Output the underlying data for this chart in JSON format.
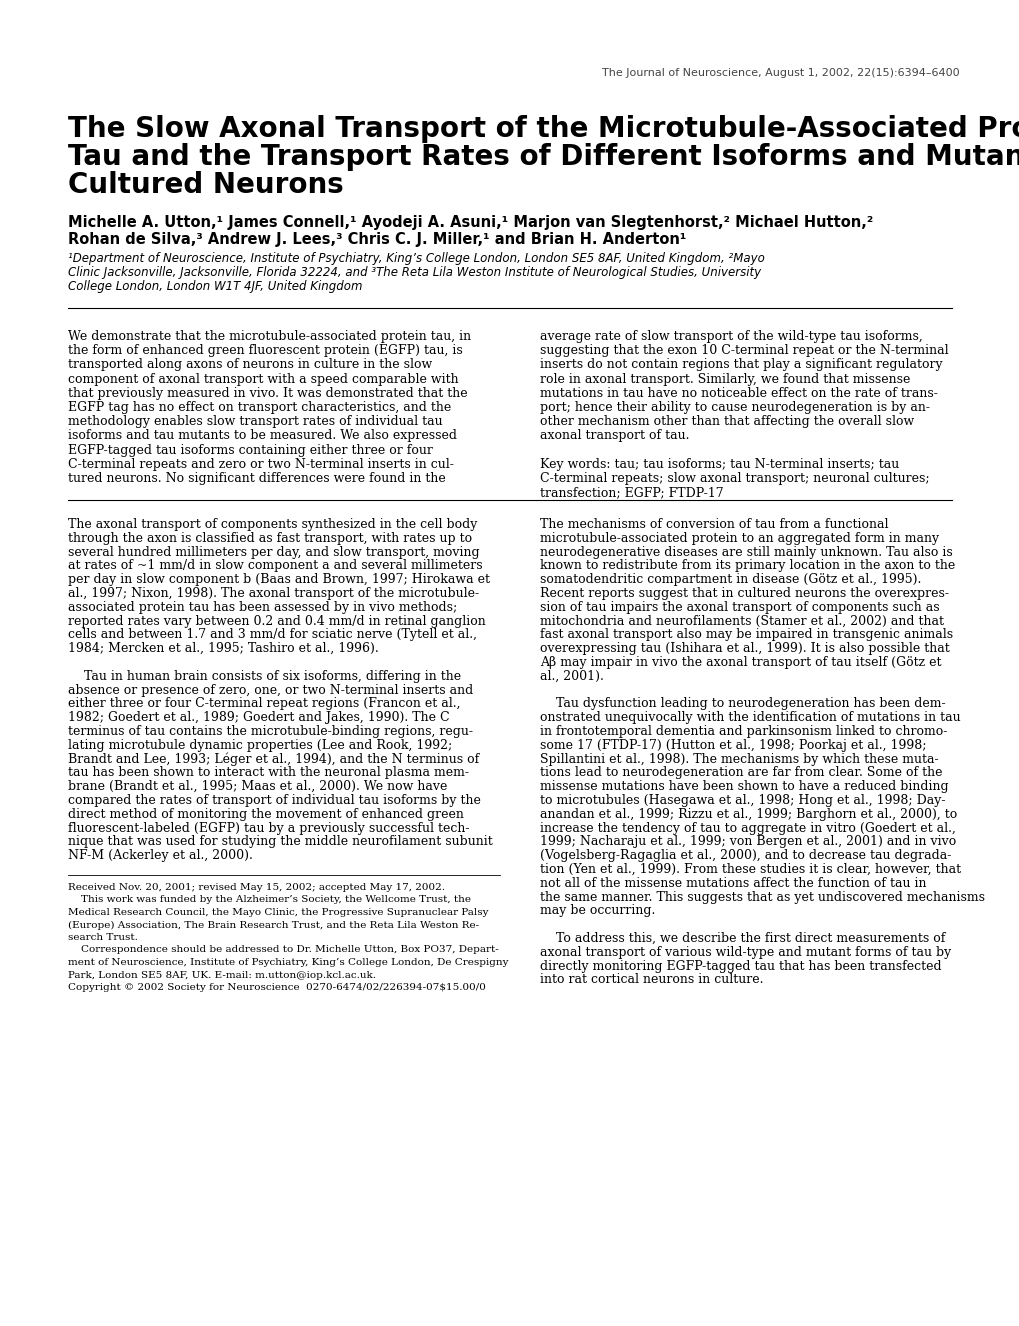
{
  "background_color": "#ffffff",
  "header_text": "The Journal of Neuroscience, August 1, 2002, 22(15):6394–6400",
  "title_line1": "The Slow Axonal Transport of the Microtubule-Associated Protein",
  "title_line2": "Tau and the Transport Rates of Different Isoforms and Mutants in",
  "title_line3": "Cultured Neurons",
  "authors_line1": "Michelle A. Utton,¹ James Connell,¹ Ayodeji A. Asuni,¹ Marjon van Slegtenhorst,² Michael Hutton,²",
  "authors_line2": "Rohan de Silva,³ Andrew J. Lees,³ Chris C. J. Miller,¹ and Brian H. Anderton¹",
  "affil1": "¹Department of Neuroscience, Institute of Psychiatry, King’s College London, London SE5 8AF, United Kingdom, ²Mayo",
  "affil2": "Clinic Jacksonville, Jacksonville, Florida 32224, and ³The Reta Lila Weston Institute of Neurological Studies, University",
  "affil3": "College London, London W1T 4JF, United Kingdom",
  "abstract_left_lines": [
    "We demonstrate that the microtubule-associated protein tau, in",
    "the form of enhanced green fluorescent protein (EGFP) tau, is",
    "transported along axons of neurons in culture in the slow",
    "component of axonal transport with a speed comparable with",
    "that previously measured in vivo. It was demonstrated that the",
    "EGFP tag has no effect on transport characteristics, and the",
    "methodology enables slow transport rates of individual tau",
    "isoforms and tau mutants to be measured. We also expressed",
    "EGFP-tagged tau isoforms containing either three or four",
    "C-terminal repeats and zero or two N-terminal inserts in cul-",
    "tured neurons. No significant differences were found in the"
  ],
  "abstract_right_lines": [
    "average rate of slow transport of the wild-type tau isoforms,",
    "suggesting that the exon 10 C-terminal repeat or the N-terminal",
    "inserts do not contain regions that play a significant regulatory",
    "role in axonal transport. Similarly, we found that missense",
    "mutations in tau have no noticeable effect on the rate of trans-",
    "port; hence their ability to cause neurodegeneration is by an-",
    "other mechanism other than that affecting the overall slow",
    "axonal transport of tau.",
    "",
    "Key words: tau; tau isoforms; tau N-terminal inserts; tau",
    "C-terminal repeats; slow axonal transport; neuronal cultures;",
    "transfection; EGFP; FTDP-17"
  ],
  "body_left_lines": [
    "The axonal transport of components synthesized in the cell body",
    "through the axon is classified as fast transport, with rates up to",
    "several hundred millimeters per day, and slow transport, moving",
    "at rates of ~1 mm/d in slow component a and several millimeters",
    "per day in slow component b (Baas and Brown, 1997; Hirokawa et",
    "al., 1997; Nixon, 1998). The axonal transport of the microtubule-",
    "associated protein tau has been assessed by in vivo methods;",
    "reported rates vary between 0.2 and 0.4 mm/d in retinal ganglion",
    "cells and between 1.7 and 3 mm/d for sciatic nerve (Tytell et al.,",
    "1984; Mercken et al., 1995; Tashiro et al., 1996).",
    "",
    "    Tau in human brain consists of six isoforms, differing in the",
    "absence or presence of zero, one, or two N-terminal inserts and",
    "either three or four C-terminal repeat regions (Francon et al.,",
    "1982; Goedert et al., 1989; Goedert and Jakes, 1990). The C",
    "terminus of tau contains the microtubule-binding regions, regu-",
    "lating microtubule dynamic properties (Lee and Rook, 1992;",
    "Brandt and Lee, 1993; Léger et al., 1994), and the N terminus of",
    "tau has been shown to interact with the neuronal plasma mem-",
    "brane (Brandt et al., 1995; Maas et al., 2000). We now have",
    "compared the rates of transport of individual tau isoforms by the",
    "direct method of monitoring the movement of enhanced green",
    "fluorescent-labeled (EGFP) tau by a previously successful tech-",
    "nique that was used for studying the middle neurofilament subunit",
    "NF-M (Ackerley et al., 2000)."
  ],
  "body_right_lines": [
    "The mechanisms of conversion of tau from a functional",
    "microtubule-associated protein to an aggregated form in many",
    "neurodegenerative diseases are still mainly unknown. Tau also is",
    "known to redistribute from its primary location in the axon to the",
    "somatodendritic compartment in disease (Götz et al., 1995).",
    "Recent reports suggest that in cultured neurons the overexpres-",
    "sion of tau impairs the axonal transport of components such as",
    "mitochondria and neurofilaments (Stamer et al., 2002) and that",
    "fast axonal transport also may be impaired in transgenic animals",
    "overexpressing tau (Ishihara et al., 1999). It is also possible that",
    "Aβ may impair in vivo the axonal transport of tau itself (Götz et",
    "al., 2001).",
    "",
    "    Tau dysfunction leading to neurodegeneration has been dem-",
    "onstrated unequivocally with the identification of mutations in tau",
    "in frontotemporal dementia and parkinsonism linked to chromo-",
    "some 17 (FTDP-17) (Hutton et al., 1998; Poorkaj et al., 1998;",
    "Spillantini et al., 1998). The mechanisms by which these muta-",
    "tions lead to neurodegeneration are far from clear. Some of the",
    "missense mutations have been shown to have a reduced binding",
    "to microtubules (Hasegawa et al., 1998; Hong et al., 1998; Day-",
    "anandan et al., 1999; Rizzu et al., 1999; Barghorn et al., 2000), to",
    "increase the tendency of tau to aggregate in vitro (Goedert et al.,",
    "1999; Nacharaju et al., 1999; von Bergen et al., 2001) and in vivo",
    "(Vogelsberg-Ragaglia et al., 2000), and to decrease tau degrada-",
    "tion (Yen et al., 1999). From these studies it is clear, however, that",
    "not all of the missense mutations affect the function of tau in",
    "the same manner. This suggests that as yet undiscovered mechanisms",
    "may be occurring.",
    "",
    "    To address this, we describe the first direct measurements of",
    "axonal transport of various wild-type and mutant forms of tau by",
    "directly monitoring EGFP-tagged tau that has been transfected",
    "into rat cortical neurons in culture."
  ],
  "footnote_lines": [
    "Received Nov. 20, 2001; revised May 15, 2002; accepted May 17, 2002.",
    "    This work was funded by the Alzheimer’s Society, the Wellcome Trust, the",
    "Medical Research Council, the Mayo Clinic, the Progressive Supranuclear Palsy",
    "(Europe) Association, The Brain Research Trust, and the Reta Lila Weston Re-",
    "search Trust.",
    "    Correspondence should be addressed to Dr. Michelle Utton, Box PO37, Depart-",
    "ment of Neuroscience, Institute of Psychiatry, King’s College London, De Crespigny",
    "Park, London SE5 8AF, UK. E-mail: m.utton@iop.kcl.ac.uk.",
    "Copyright © 2002 Society for Neuroscience  0270-6474/02/226394-07$15.00/0"
  ]
}
